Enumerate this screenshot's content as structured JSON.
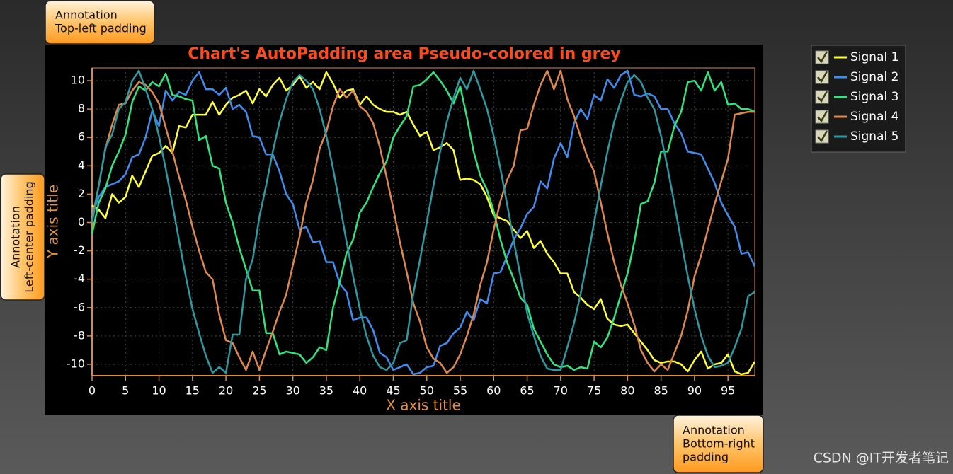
{
  "chart_data": {
    "type": "line",
    "title": "Chart's AutoPadding area Pseudo-colored in grey",
    "x_label": "X axis title",
    "y_label": "Y axis title",
    "xlim": [
      0,
      99
    ],
    "ylim": [
      -10.8,
      10.9
    ],
    "xticks": [
      0,
      5,
      10,
      15,
      20,
      25,
      30,
      35,
      40,
      45,
      50,
      55,
      60,
      65,
      70,
      75,
      80,
      85,
      90,
      95
    ],
    "yticks": [
      -10,
      -8,
      -6,
      -4,
      -2,
      0,
      2,
      4,
      6,
      8,
      10
    ],
    "grid": true,
    "legend": "right",
    "x": [
      0,
      1,
      2,
      3,
      4,
      5,
      6,
      7,
      8,
      9,
      10,
      11,
      12,
      13,
      14,
      15,
      16,
      17,
      18,
      19,
      20,
      21,
      22,
      23,
      24,
      25,
      26,
      27,
      28,
      29,
      30,
      31,
      32,
      33,
      34,
      35,
      36,
      37,
      38,
      39,
      40,
      41,
      42,
      43,
      44,
      45,
      46,
      47,
      48,
      49,
      50,
      51,
      52,
      53,
      54,
      55,
      56,
      57,
      58,
      59,
      60,
      61,
      62,
      63,
      64,
      65,
      66,
      67,
      68,
      69,
      70,
      71,
      72,
      73,
      74,
      75,
      76,
      77,
      78,
      79,
      80,
      81,
      82,
      83,
      84,
      85,
      86,
      87,
      88,
      89,
      90,
      91,
      92,
      93,
      94,
      95,
      96,
      97,
      98,
      99
    ],
    "series": [
      {
        "name": "Signal 1",
        "color": "#ffff33",
        "values": [
          1.2,
          0.9,
          0.3,
          2.0,
          1.4,
          1.8,
          3.3,
          2.5,
          3.6,
          4.7,
          4.9,
          5.4,
          4.9,
          6.8,
          6.7,
          7.6,
          7.6,
          7.6,
          8.5,
          7.6,
          8.3,
          8.8,
          9.0,
          9.3,
          8.4,
          9.4,
          8.9,
          9.7,
          10.2,
          9.3,
          9.7,
          10.3,
          9.5,
          9.9,
          9.4,
          10.6,
          9.8,
          8.8,
          9.3,
          9.4,
          8.3,
          8.9,
          8.3,
          8.0,
          7.8,
          7.8,
          7.6,
          7.8,
          6.9,
          6.1,
          6.4,
          5.1,
          5.3,
          5.6,
          5.1,
          3.0,
          3.1,
          3.0,
          2.7,
          1.8,
          0.5,
          0.3,
          0.1,
          -0.5,
          -1.1,
          -0.6,
          -1.8,
          -1.3,
          -2.2,
          -2.8,
          -3.6,
          -3.6,
          -4.9,
          -5.3,
          -5.8,
          -6.1,
          -5.4,
          -6.8,
          -7.2,
          -7.3,
          -7.2,
          -7.8,
          -8.4,
          -9.0,
          -9.7,
          -9.9,
          -9.8,
          -9.8,
          -10.0,
          -10.5,
          -9.7,
          -9.1,
          -10.3,
          -10.0,
          -9.9,
          -9.3,
          -10.5,
          -10.7,
          -10.6,
          -9.8
        ]
      },
      {
        "name": "Signal 2",
        "color": "#3d8ef0",
        "values": [
          0.5,
          1.8,
          2.5,
          2.7,
          2.9,
          3.4,
          4.6,
          4.8,
          6.0,
          7.9,
          6.8,
          9.3,
          8.6,
          9.2,
          9.0,
          10.0,
          10.6,
          9.4,
          9.4,
          9.0,
          9.5,
          8.0,
          8.3,
          7.8,
          6.1,
          6.0,
          4.8,
          4.8,
          3.6,
          2.0,
          1.3,
          -0.5,
          -0.3,
          -1.4,
          -1.3,
          -2.8,
          -2.8,
          -4.3,
          -4.9,
          -6.9,
          -6.7,
          -6.7,
          -7.6,
          -9.2,
          -9.5,
          -10.4,
          -10.2,
          -10.0,
          -10.7,
          -10.6,
          -10.2,
          -10.1,
          -8.7,
          -8.5,
          -7.8,
          -7.4,
          -6.3,
          -6.9,
          -5.4,
          -5.7,
          -3.6,
          -3.5,
          -2.4,
          -1.2,
          -0.4,
          0.6,
          1.1,
          2.9,
          2.4,
          4.5,
          5.6,
          4.6,
          7.0,
          8.0,
          7.3,
          9.0,
          8.6,
          10.1,
          9.5,
          10.4,
          10.7,
          9.0,
          8.9,
          9.1,
          8.9,
          8.0,
          8.0,
          7.0,
          6.3,
          5.0,
          4.9,
          4.8,
          3.8,
          2.8,
          1.4,
          0.5,
          -0.3,
          -2.2,
          -2.1,
          -3.1
        ]
      },
      {
        "name": "Signal 3",
        "color": "#2ee67e",
        "values": [
          -0.8,
          1.4,
          2.4,
          4.0,
          5.0,
          6.2,
          8.5,
          9.6,
          9.3,
          9.9,
          9.6,
          10.5,
          9.0,
          8.9,
          8.7,
          8.6,
          5.8,
          6.1,
          4.0,
          3.8,
          1.4,
          0.0,
          -1.8,
          -3.3,
          -4.8,
          -4.8,
          -7.8,
          -7.8,
          -9.3,
          -9.1,
          -9.2,
          -9.3,
          -9.9,
          -9.5,
          -8.8,
          -9.0,
          -6.0,
          -4.2,
          -2.2,
          -1.2,
          0.7,
          1.4,
          2.5,
          3.5,
          4.3,
          6.0,
          6.8,
          7.5,
          9.6,
          9.7,
          10.1,
          10.6,
          10.0,
          9.3,
          8.4,
          9.6,
          7.4,
          5.0,
          3.3,
          2.3,
          0.8,
          -1.2,
          -2.8,
          -4.0,
          -5.3,
          -5.8,
          -7.5,
          -8.4,
          -9.3,
          -10.0,
          -10.2,
          -10.1,
          -10.4,
          -10.2,
          -10.3,
          -8.4,
          -8.8,
          -8.1,
          -6.7,
          -5.1,
          -3.6,
          -1.4,
          1.3,
          1.5,
          2.8,
          5.0,
          5.0,
          6.8,
          7.8,
          9.9,
          10.0,
          9.3,
          10.6,
          9.3,
          9.9,
          8.3,
          8.4,
          8.0,
          8.0,
          7.8
        ]
      },
      {
        "name": "Signal 4",
        "color": "#e0874a",
        "values": [
          0.2,
          2.6,
          5.2,
          6.9,
          8.3,
          8.4,
          9.3,
          9.9,
          9.7,
          9.2,
          8.4,
          6.7,
          5.0,
          3.2,
          1.6,
          -0.3,
          -2.0,
          -3.5,
          -4.0,
          -6.5,
          -8.3,
          -8.5,
          -9.5,
          -10.4,
          -9.1,
          -10.4,
          -9.0,
          -7.7,
          -6.3,
          -5.1,
          -3.0,
          -1.0,
          1.4,
          3.0,
          5.2,
          6.4,
          8.2,
          9.4,
          8.8,
          9.3,
          8.2,
          7.8,
          7.0,
          5.3,
          3.2,
          1.0,
          -1.4,
          -3.5,
          -5.7,
          -7.0,
          -8.8,
          -9.6,
          -9.9,
          -10.6,
          -10.2,
          -9.3,
          -8.0,
          -6.5,
          -4.4,
          -2.8,
          -0.5,
          1.5,
          3.0,
          4.0,
          6.5,
          6.6,
          8.3,
          9.7,
          10.7,
          9.4,
          10.7,
          8.7,
          7.5,
          6.0,
          4.6,
          3.6,
          1.4,
          -0.8,
          -2.8,
          -4.4,
          -5.7,
          -7.2,
          -9.0,
          -9.9,
          -10.5,
          -10.0,
          -10.4,
          -9.2,
          -8.0,
          -6.2,
          -3.8,
          -2.3,
          -0.5,
          1.3,
          2.9,
          4.5,
          7.6,
          7.7,
          7.8,
          7.8
        ]
      },
      {
        "name": "Signal 5",
        "color": "#2a9aa3",
        "values": [
          0.0,
          2.6,
          5.3,
          6.2,
          8.0,
          8.5,
          10.0,
          10.7,
          9.4,
          8.0,
          6.1,
          3.8,
          1.3,
          -1.3,
          -3.8,
          -6.1,
          -7.8,
          -9.4,
          -10.6,
          -10.2,
          -10.6,
          -7.9,
          -7.9,
          -4.0,
          -2.6,
          0.4,
          2.6,
          5.0,
          7.1,
          8.7,
          9.9,
          10.4,
          10.0,
          9.4,
          8.0,
          6.1,
          3.8,
          1.3,
          -1.3,
          -3.8,
          -6.1,
          -8.0,
          -9.4,
          -10.2,
          -10.4,
          -9.9,
          -8.5,
          -8.3,
          -5.0,
          -2.6,
          0.0,
          2.6,
          5.0,
          7.1,
          8.8,
          10.2,
          9.4,
          10.7,
          9.4,
          8.0,
          6.1,
          3.8,
          1.3,
          -1.3,
          -3.8,
          -6.4,
          -8.0,
          -9.4,
          -10.3,
          -10.4,
          -10.4,
          -8.8,
          -7.1,
          -5.0,
          -2.6,
          0.0,
          2.6,
          5.0,
          7.1,
          8.6,
          9.9,
          10.4,
          9.9,
          8.8,
          8.0,
          6.1,
          3.8,
          1.3,
          -1.3,
          -3.8,
          -6.1,
          -8.0,
          -9.4,
          -10.2,
          -10.1,
          -9.9,
          -8.8,
          -7.5,
          -5.2,
          -4.9
        ]
      }
    ],
    "annotations": [
      {
        "lines": [
          "Annotation",
          "Top-left padding"
        ]
      },
      {
        "lines": [
          "Annotation",
          "Left-center padding"
        ]
      },
      {
        "lines": [
          "Annotation",
          "Bottom-right",
          "padding"
        ]
      }
    ],
    "watermark": "CSDN @IT开发者笔记"
  }
}
